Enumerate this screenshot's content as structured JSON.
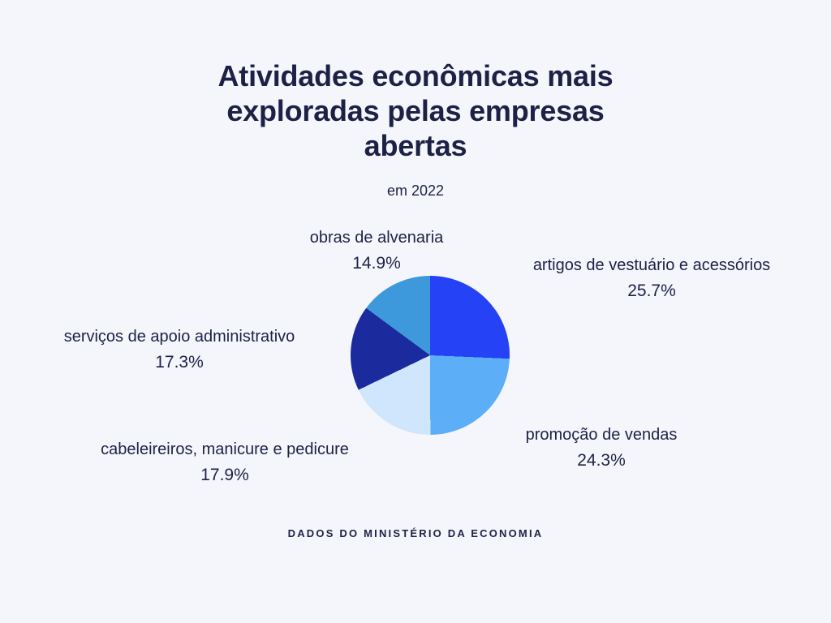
{
  "title_lines": [
    "Atividades econômicas mais",
    "exploradas pelas empresas",
    "abertas"
  ],
  "subtitle": "em 2022",
  "source": "DADOS DO MINISTÉRIO DA ECONOMIA",
  "colors": {
    "background": "#f5f6fc",
    "text": "#1d2145"
  },
  "chart_data": {
    "type": "pie",
    "title": "Atividades econômicas mais exploradas pelas empresas abertas",
    "subtitle": "em 2022",
    "start_angle_deg": 0,
    "direction": "clockwise",
    "legend": "labels-around-pie",
    "slices": [
      {
        "label": "artigos de vestuário e acessórios",
        "value": 25.7,
        "display": "25.7%",
        "color": "#2542f7"
      },
      {
        "label": "promoção de vendas",
        "value": 24.3,
        "display": "24.3%",
        "color": "#5caef7"
      },
      {
        "label": "cabeleireiros, manicure e pedicure",
        "value": 17.9,
        "display": "17.9%",
        "color": "#cfe6fc"
      },
      {
        "label": "serviços de apoio administrativo",
        "value": 17.3,
        "display": "17.3%",
        "color": "#1b2b9e"
      },
      {
        "label": "obras de alvenaria",
        "value": 14.9,
        "display": "14.9%",
        "color": "#3d98dc"
      }
    ]
  }
}
